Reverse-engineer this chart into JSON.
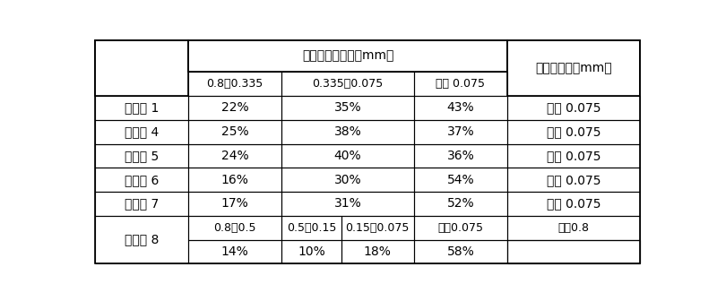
{
  "header_row1_calcined": "煛后焦粒度分布（mm）",
  "header_row1_needle": "针状焦粒度（mm）",
  "header_row2": [
    "0.8～0.335",
    "0.335～0.075",
    "小于 0.075",
    "小于 0.075"
  ],
  "data_rows": [
    [
      "实施例 1",
      "22%",
      "35%",
      "43%",
      "小于 0.075"
    ],
    [
      "比较例 4",
      "25%",
      "38%",
      "37%",
      "小于 0.075"
    ],
    [
      "比较例 5",
      "24%",
      "40%",
      "36%",
      "小于 0.075"
    ],
    [
      "比较例 6",
      "16%",
      "30%",
      "54%",
      "小于 0.075"
    ],
    [
      "比较例 7",
      "17%",
      "31%",
      "52%",
      "小于 0.075"
    ]
  ],
  "last_group_label": "比较组 8",
  "last_group_header": [
    "0.8～0.5",
    "0.5～0.15",
    "0.15～0.075",
    "小于0.075",
    "小于0.8"
  ],
  "last_group_data": [
    "14%",
    "10%",
    "18%",
    "58%",
    ""
  ],
  "bg_color": "#ffffff",
  "line_color": "#000000",
  "font_size": 10
}
